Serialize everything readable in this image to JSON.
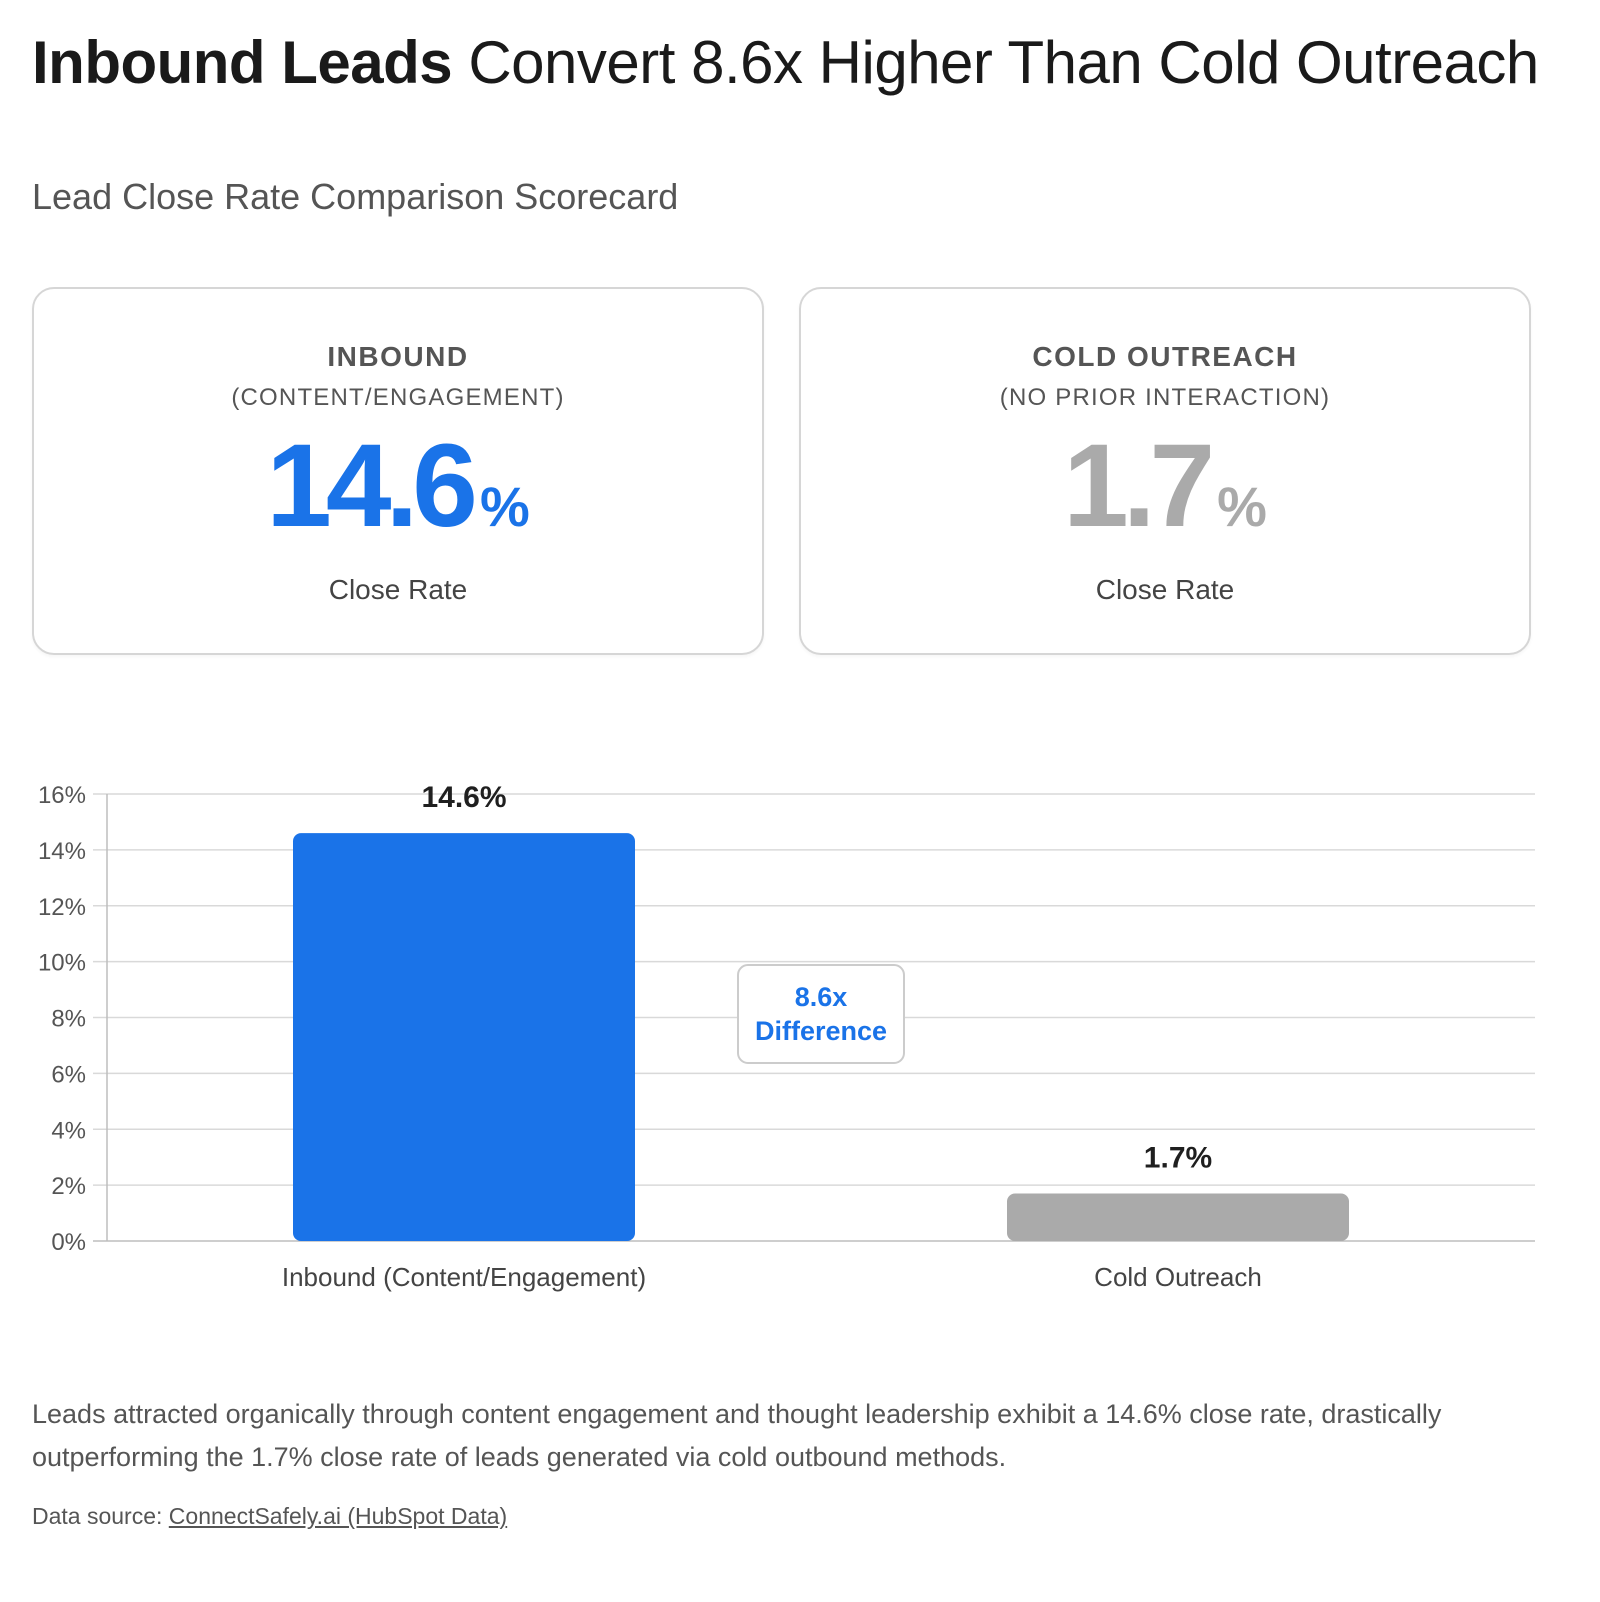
{
  "header": {
    "title_bold": "Inbound Leads",
    "title_rest": " Convert 8.6x Higher Than Cold Outreach",
    "subtitle": "Lead Close Rate Comparison Scorecard"
  },
  "cards": [
    {
      "name": "INBOUND",
      "desc": "(CONTENT/ENGAGEMENT)",
      "value": "14.6",
      "unit": "%",
      "label": "Close Rate",
      "color": "#1a73e8"
    },
    {
      "name": "COLD OUTREACH",
      "desc": "(NO PRIOR INTERACTION)",
      "value": "1.7",
      "unit": "%",
      "label": "Close Rate",
      "color": "#aaaaaa"
    }
  ],
  "chart_data": {
    "type": "bar",
    "categories": [
      "Inbound (Content/Engagement)",
      "Cold Outreach"
    ],
    "values": [
      14.6,
      1.7
    ],
    "value_labels": [
      "14.6%",
      "1.7%"
    ],
    "colors": [
      "#1a73e8",
      "#aaaaaa"
    ],
    "ylim": [
      0,
      16
    ],
    "yticks": [
      0,
      2,
      4,
      6,
      8,
      10,
      12,
      14,
      16
    ],
    "ytick_labels": [
      "0%",
      "2%",
      "4%",
      "6%",
      "8%",
      "10%",
      "12%",
      "14%",
      "16%"
    ],
    "grid": true,
    "annotation": {
      "line1": "8.6x",
      "line2": "Difference"
    }
  },
  "footer": {
    "note": "Leads attracted organically through content engagement and thought leadership exhibit a 14.6% close rate, drastically outperforming the 1.7% close rate of leads generated via cold outbound methods.",
    "source_prefix": "Data source: ",
    "source_link": "ConnectSafely.ai (HubSpot Data)"
  }
}
